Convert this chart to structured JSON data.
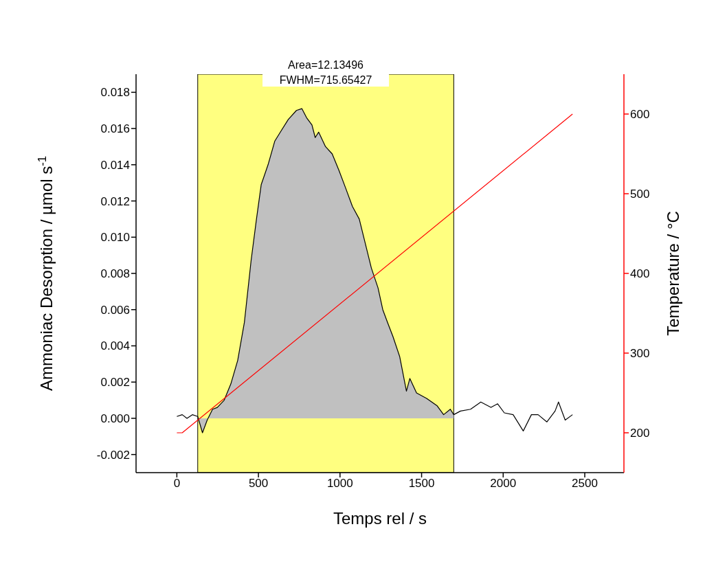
{
  "chart_data": {
    "type": "line",
    "xlabel": "Temps rel  / s",
    "ylabel": "Ammoniac Desorption / µmol s$^{-1}$",
    "y2label": "Temperature / °C",
    "xlim": [
      -250,
      2740
    ],
    "xticks": [
      0,
      500,
      1000,
      1500,
      2000,
      2500
    ],
    "ylim": [
      -0.003,
      0.019
    ],
    "yticks": [
      -0.002,
      {
        "value": 0,
        "label": "0.000"
      },
      0.002,
      0.004,
      0.006,
      0.008,
      {
        "value": 0.01,
        "label": "0.010"
      },
      0.012,
      0.014,
      0.016,
      0.018
    ],
    "y2lim": [
      150,
      650
    ],
    "y2ticks": [
      200,
      300,
      400,
      500,
      600
    ],
    "grid": false,
    "legend": false,
    "marker": "none",
    "line_style": "solid",
    "bands": [
      {
        "axis": "x",
        "from": 128,
        "to": 1697,
        "color": "#ffff80"
      }
    ],
    "annotations": [
      "Area=12.13496",
      "FWHM=715.65427"
    ],
    "series": [
      {
        "type": "area",
        "color": "#c0c0c0",
        "x": [
          128,
          157,
          186,
          219,
          248,
          290,
          331,
          373,
          414,
          455,
          488,
          517,
          559,
          600,
          641,
          683,
          733,
          766,
          795,
          828,
          848,
          869,
          911,
          952,
          993,
          1035,
          1076,
          1118,
          1159,
          1192,
          1233,
          1262,
          1291,
          1325,
          1366,
          1407,
          1428,
          1469,
          1531,
          1594,
          1635,
          1676,
          1697
        ],
        "values": [
          0.0001,
          -0.0008,
          -0.0001,
          0.0005,
          0.0006,
          0.001,
          0.0019,
          0.0032,
          0.0053,
          0.0087,
          0.011,
          0.0129,
          0.014,
          0.0153,
          0.0159,
          0.0165,
          0.017,
          0.0171,
          0.0166,
          0.0162,
          0.0155,
          0.0158,
          0.015,
          0.0146,
          0.0137,
          0.0127,
          0.0117,
          0.011,
          0.0095,
          0.0083,
          0.0072,
          0.006,
          0.0053,
          0.0045,
          0.0034,
          0.0015,
          0.0022,
          0.0014,
          0.0011,
          0.0007,
          0.0002,
          0.0005,
          0.0002
        ]
      },
      {
        "color": "#000000",
        "x": [
          0,
          33,
          62,
          95,
          128,
          157,
          186,
          219,
          248,
          290,
          331,
          373,
          414,
          455,
          488,
          517,
          559,
          600,
          641,
          683,
          733,
          766,
          795,
          828,
          848,
          869,
          911,
          952,
          993,
          1035,
          1076,
          1118,
          1159,
          1192,
          1233,
          1262,
          1291,
          1325,
          1366,
          1407,
          1428,
          1469,
          1531,
          1594,
          1635,
          1676,
          1697,
          1738,
          1800,
          1863,
          1925,
          1966,
          2007,
          2061,
          2123,
          2173,
          2214,
          2268,
          2318,
          2339,
          2380,
          2425
        ],
        "values": [
          0.0001,
          0.0002,
          0.0,
          0.0002,
          0.0001,
          -0.0008,
          -0.0001,
          0.0005,
          0.0006,
          0.001,
          0.0019,
          0.0032,
          0.0053,
          0.0087,
          0.011,
          0.0129,
          0.014,
          0.0153,
          0.0159,
          0.0165,
          0.017,
          0.0171,
          0.0166,
          0.0162,
          0.0155,
          0.0158,
          0.015,
          0.0146,
          0.0137,
          0.0127,
          0.0117,
          0.011,
          0.0095,
          0.0083,
          0.0072,
          0.006,
          0.0053,
          0.0045,
          0.0034,
          0.0015,
          0.0022,
          0.0014,
          0.0011,
          0.0007,
          0.0002,
          0.0005,
          0.0002,
          0.0004,
          0.0005,
          0.0009,
          0.0006,
          0.0008,
          0.0003,
          0.0002,
          -0.0007,
          0.0002,
          0.0002,
          -0.0002,
          0.0004,
          0.0009,
          -0.0001,
          0.0002
        ]
      },
      {
        "type": "line",
        "axis": "y2",
        "color": "#ff0000",
        "x": [
          0,
          33,
          2425
        ],
        "values": [
          200,
          200,
          600
        ]
      }
    ]
  }
}
